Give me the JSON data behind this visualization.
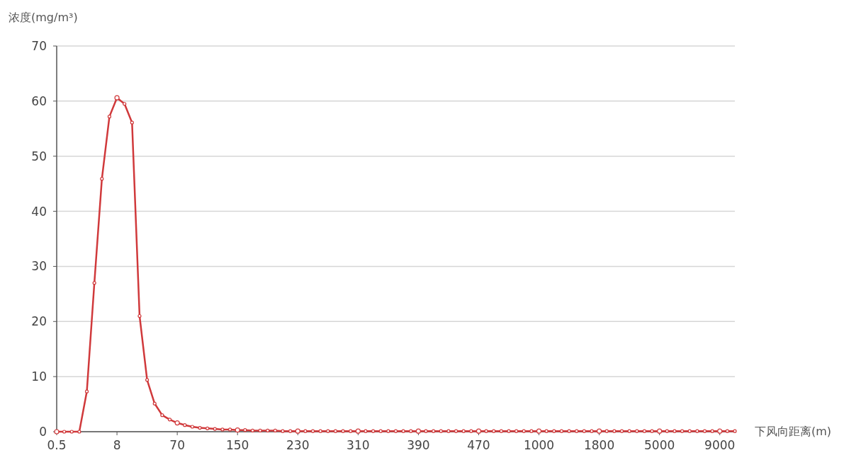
{
  "chart_data": {
    "type": "line",
    "xlabel": "下风向距离(m)",
    "ylabel": "浓度(mg/m³)",
    "categories": [
      "0.5",
      null,
      null,
      null,
      null,
      null,
      null,
      null,
      "8",
      null,
      null,
      null,
      null,
      null,
      null,
      null,
      "70",
      null,
      null,
      null,
      null,
      null,
      null,
      null,
      "150",
      null,
      null,
      null,
      null,
      null,
      null,
      null,
      "230",
      null,
      null,
      null,
      null,
      null,
      null,
      null,
      "310",
      null,
      null,
      null,
      null,
      null,
      null,
      null,
      "390",
      null,
      null,
      null,
      null,
      null,
      null,
      null,
      "470",
      null,
      null,
      null,
      null,
      null,
      null,
      null,
      "1000",
      null,
      null,
      null,
      null,
      null,
      null,
      null,
      "1800",
      null,
      null,
      null,
      null,
      null,
      null,
      null,
      "5000",
      null,
      null,
      null,
      null,
      null,
      null,
      null,
      "9000",
      null,
      null
    ],
    "series": [
      {
        "color": "#d0393b",
        "values": [
          0,
          0,
          0,
          0,
          7.3,
          27,
          45.9,
          57.2,
          60.6,
          59.5,
          56.1,
          21,
          9.4,
          5.1,
          3,
          2.2,
          1.6,
          1.2,
          0.9,
          0.7,
          0.6,
          0.5,
          0.4,
          0.4,
          0.3,
          0.3,
          0.2,
          0.2,
          0.2,
          0.2,
          0.1,
          0.1,
          0.1,
          0.1,
          0.1,
          0.1,
          0.1,
          0.1,
          0.1,
          0.1,
          0.1,
          0.1,
          0.1,
          0.1,
          0.1,
          0.1,
          0.1,
          0.1,
          0.1,
          0.1,
          0.1,
          0.1,
          0.1,
          0.1,
          0.1,
          0.1,
          0.1,
          0.1,
          0.1,
          0.1,
          0.1,
          0.1,
          0.1,
          0.1,
          0.1,
          0.1,
          0.1,
          0.1,
          0.1,
          0.1,
          0.1,
          0.1,
          0.1,
          0.1,
          0.1,
          0.1,
          0.1,
          0.1,
          0.1,
          0.1,
          0.1,
          0.1,
          0.1,
          0.1,
          0.1,
          0.1,
          0.1,
          0.1,
          0.1,
          0.1,
          0.1
        ]
      }
    ],
    "ylim": [
      0,
      70
    ],
    "yticks": [
      0,
      10,
      20,
      30,
      40,
      50,
      60,
      70
    ],
    "grid": "y",
    "marker": "circle",
    "line_style": "solid"
  }
}
